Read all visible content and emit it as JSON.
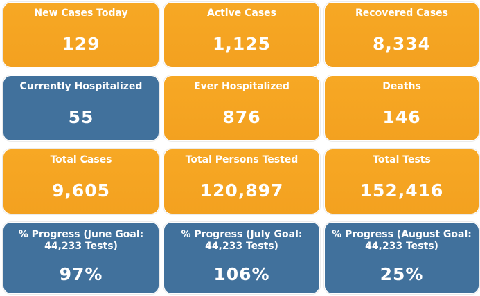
{
  "colors": {
    "orange": "#f5a623",
    "blue": "#41719c",
    "text": "#ffffff"
  },
  "cards": [
    {
      "label": "New Cases Today",
      "value": "129",
      "color": "orange"
    },
    {
      "label": "Active Cases",
      "value": "1,125",
      "color": "orange"
    },
    {
      "label": "Recovered Cases",
      "value": "8,334",
      "color": "orange"
    },
    {
      "label": "Currently Hospitalized",
      "value": "55",
      "color": "blue"
    },
    {
      "label": "Ever Hospitalized",
      "value": "876",
      "color": "orange"
    },
    {
      "label": "Deaths",
      "value": "146",
      "color": "orange"
    },
    {
      "label": "Total Cases",
      "value": "9,605",
      "color": "orange"
    },
    {
      "label": "Total Persons Tested",
      "value": "120,897",
      "color": "orange"
    },
    {
      "label": "Total Tests",
      "value": "152,416",
      "color": "orange"
    },
    {
      "label": "% Progress (June Goal: 44,233 Tests)",
      "value": "97%",
      "color": "blue"
    },
    {
      "label": "% Progress (July Goal: 44,233 Tests)",
      "value": "106%",
      "color": "blue"
    },
    {
      "label": "% Progress (August Goal: 44,233 Tests)",
      "value": "25%",
      "color": "blue"
    }
  ]
}
